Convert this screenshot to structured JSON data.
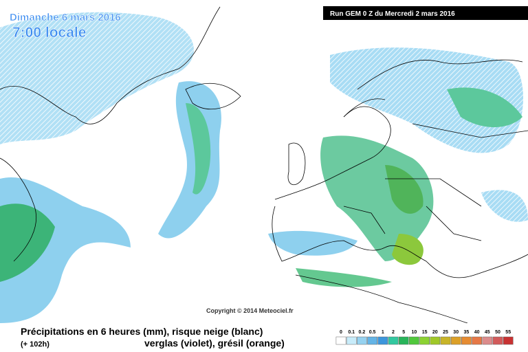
{
  "header": {
    "date": "Dimanche 6 mars 2016",
    "time": "7:00 locale",
    "run": "Run GEM 0 Z du Mercredi 2 mars 2016"
  },
  "copyright": "Copyright © 2014 Meteociel.fr",
  "footer": {
    "line1": "Précipitations en 6 heures (mm), risque neige (blanc)",
    "lead": "(+ 102h)",
    "line2": "verglas (violet), grésil (orange)"
  },
  "legend": {
    "labels": [
      0,
      0.1,
      0.2,
      0.5,
      1,
      2,
      5,
      10,
      15,
      20,
      25,
      30,
      35,
      40,
      45,
      50,
      55
    ],
    "colors": [
      "#ffffff",
      "#c8ecfa",
      "#96d2f0",
      "#64b4e6",
      "#3c96dc",
      "#32c8a0",
      "#28b45a",
      "#50c83c",
      "#8cd232",
      "#a0c828",
      "#c8b428",
      "#dca028",
      "#e68c32",
      "#e67846",
      "#dc8c8c",
      "#d25a5a",
      "#c83232"
    ]
  }
}
